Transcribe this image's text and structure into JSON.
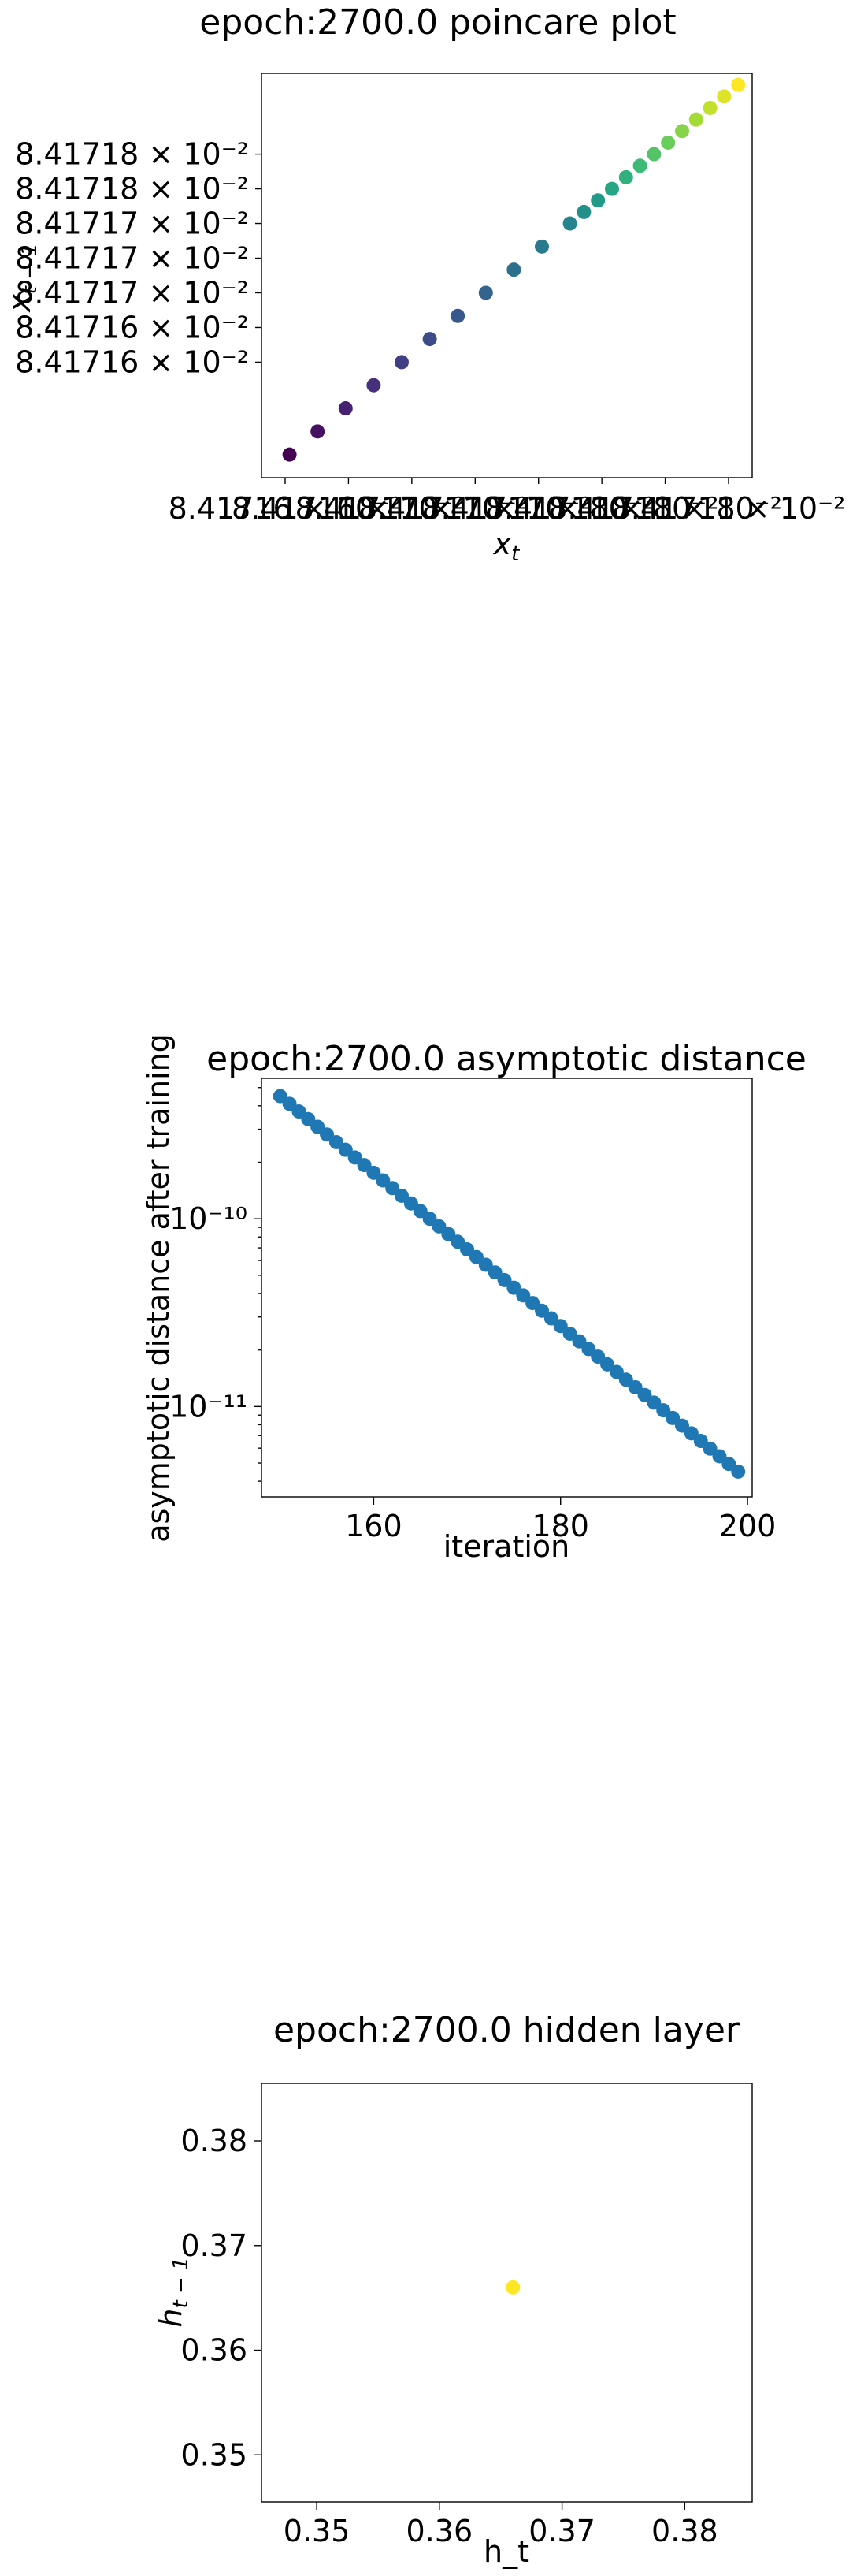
{
  "chart_data": [
    {
      "type": "scatter",
      "title": "epoch:2700.0 poincare plot",
      "xlabel": "x_t",
      "ylabel": "x_{t-1}",
      "colormap": "viridis",
      "x_tick_labels": [
        "8.41716 × 10⁻²",
        "8.41716 × 10⁻²",
        "8.41717 × 10⁻²",
        "8.41717 × 10⁻²",
        "8.41717 × 10⁻²",
        "8.41718 × 10⁻²",
        "8.41718 × 10⁻²",
        "8.41718 × 10⁻²"
      ],
      "y_tick_labels": [
        "8.41716 × 10⁻²",
        "8.41716 × 10⁻²",
        "8.41717 × 10⁻²",
        "8.41717 × 10⁻²",
        "8.41717 × 10⁻²",
        "8.41718 × 10⁻²",
        "8.41718 × 10⁻²"
      ],
      "y_tick_values": [
        0.0841716,
        0.08417163,
        0.08417166,
        0.08417169,
        0.08417172,
        0.08417175,
        0.08417178
      ],
      "xlim": [
        0.0841715,
        0.08417185
      ],
      "ylim": [
        0.0841715,
        0.08417185
      ],
      "points": [
        {
          "x": 0.08417152,
          "y": 0.08417152
        },
        {
          "x": 0.08417154,
          "y": 0.08417154
        },
        {
          "x": 0.08417156,
          "y": 0.08417156
        },
        {
          "x": 0.08417158,
          "y": 0.08417158
        },
        {
          "x": 0.0841716,
          "y": 0.0841716
        },
        {
          "x": 0.08417162,
          "y": 0.08417162
        },
        {
          "x": 0.08417164,
          "y": 0.08417164
        },
        {
          "x": 0.08417166,
          "y": 0.08417166
        },
        {
          "x": 0.08417168,
          "y": 0.08417168
        },
        {
          "x": 0.0841717,
          "y": 0.0841717
        },
        {
          "x": 0.08417172,
          "y": 0.08417172
        },
        {
          "x": 0.08417173,
          "y": 0.08417173
        },
        {
          "x": 0.08417174,
          "y": 0.08417174
        },
        {
          "x": 0.08417175,
          "y": 0.08417175
        },
        {
          "x": 0.08417176,
          "y": 0.08417176
        },
        {
          "x": 0.08417177,
          "y": 0.08417177
        },
        {
          "x": 0.08417178,
          "y": 0.08417178
        },
        {
          "x": 0.08417179,
          "y": 0.08417179
        },
        {
          "x": 0.0841718,
          "y": 0.0841718
        },
        {
          "x": 0.08417181,
          "y": 0.08417181
        },
        {
          "x": 0.08417182,
          "y": 0.08417182
        },
        {
          "x": 0.08417183,
          "y": 0.08417183
        },
        {
          "x": 0.08417184,
          "y": 0.08417184
        }
      ]
    },
    {
      "type": "scatter",
      "title": "epoch:2700.0 asymptotic distance",
      "xlabel": "iteration",
      "ylabel": "asymptotic distance after training",
      "yscale": "log",
      "color": "#1f77b4",
      "xlim": [
        148,
        200.5
      ],
      "ylim": [
        3.3e-12,
        5.6e-10
      ],
      "x_ticks": [
        160,
        180,
        200
      ],
      "y_major_ticks": [
        1e-11,
        1e-10
      ],
      "y_tick_labels": [
        "10⁻¹¹",
        "10⁻¹⁰"
      ],
      "x_range": [
        150,
        199
      ],
      "y_start": 4.5e-10,
      "y_end": 4.5e-12
    },
    {
      "type": "scatter",
      "title": "epoch:2700.0 hidden layer",
      "xlabel": "h_t",
      "ylabel": "h_{t-1}",
      "color": "#fde725",
      "xlim": [
        0.3455,
        0.3855
      ],
      "ylim": [
        0.3455,
        0.3855
      ],
      "x_ticks": [
        0.35,
        0.36,
        0.37,
        0.38
      ],
      "y_ticks": [
        0.35,
        0.36,
        0.37,
        0.38
      ],
      "points": [
        {
          "x": 0.366,
          "y": 0.366
        }
      ]
    }
  ]
}
